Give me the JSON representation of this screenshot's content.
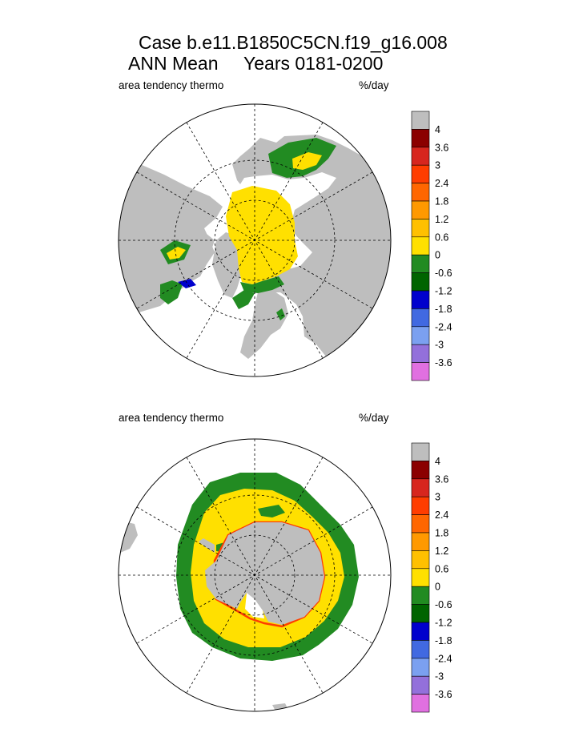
{
  "header": {
    "title_line1": "Case b.e11.B1850C5CN.f19_g16.008",
    "title_line2": "ANN Mean     Years 0181-0200"
  },
  "chart_data": [
    {
      "type": "heatmap",
      "projection": "polar-stereographic",
      "hemisphere": "north",
      "left_label": "area tendency thermo",
      "right_label": "%/day",
      "colorbar": {
        "labels": [
          "4",
          "3.6",
          "3",
          "2.4",
          "1.8",
          "1.2",
          "0.6",
          "0",
          "-0.6",
          "-1.2",
          "-1.8",
          "-2.4",
          "-3",
          "-3.6"
        ],
        "colors": [
          "#bebebe",
          "#8b0000",
          "#d7261e",
          "#ff3d00",
          "#ff6600",
          "#ff9900",
          "#ffc000",
          "#ffe000",
          "#228b22",
          "#006400",
          "#0000cd",
          "#4169e1",
          "#7ba0f0",
          "#9370db",
          "#e070e0"
        ]
      },
      "legend_position": "right"
    },
    {
      "type": "heatmap",
      "projection": "polar-stereographic",
      "hemisphere": "south",
      "left_label": "area tendency thermo",
      "right_label": "%/day",
      "colorbar": {
        "labels": [
          "4",
          "3.6",
          "3",
          "2.4",
          "1.8",
          "1.2",
          "0.6",
          "0",
          "-0.6",
          "-1.2",
          "-1.8",
          "-2.4",
          "-3",
          "-3.6"
        ],
        "colors": [
          "#bebebe",
          "#8b0000",
          "#d7261e",
          "#ff3d00",
          "#ff6600",
          "#ff9900",
          "#ffc000",
          "#ffe000",
          "#228b22",
          "#006400",
          "#0000cd",
          "#4169e1",
          "#7ba0f0",
          "#9370db",
          "#e070e0"
        ]
      },
      "legend_position": "right"
    }
  ]
}
